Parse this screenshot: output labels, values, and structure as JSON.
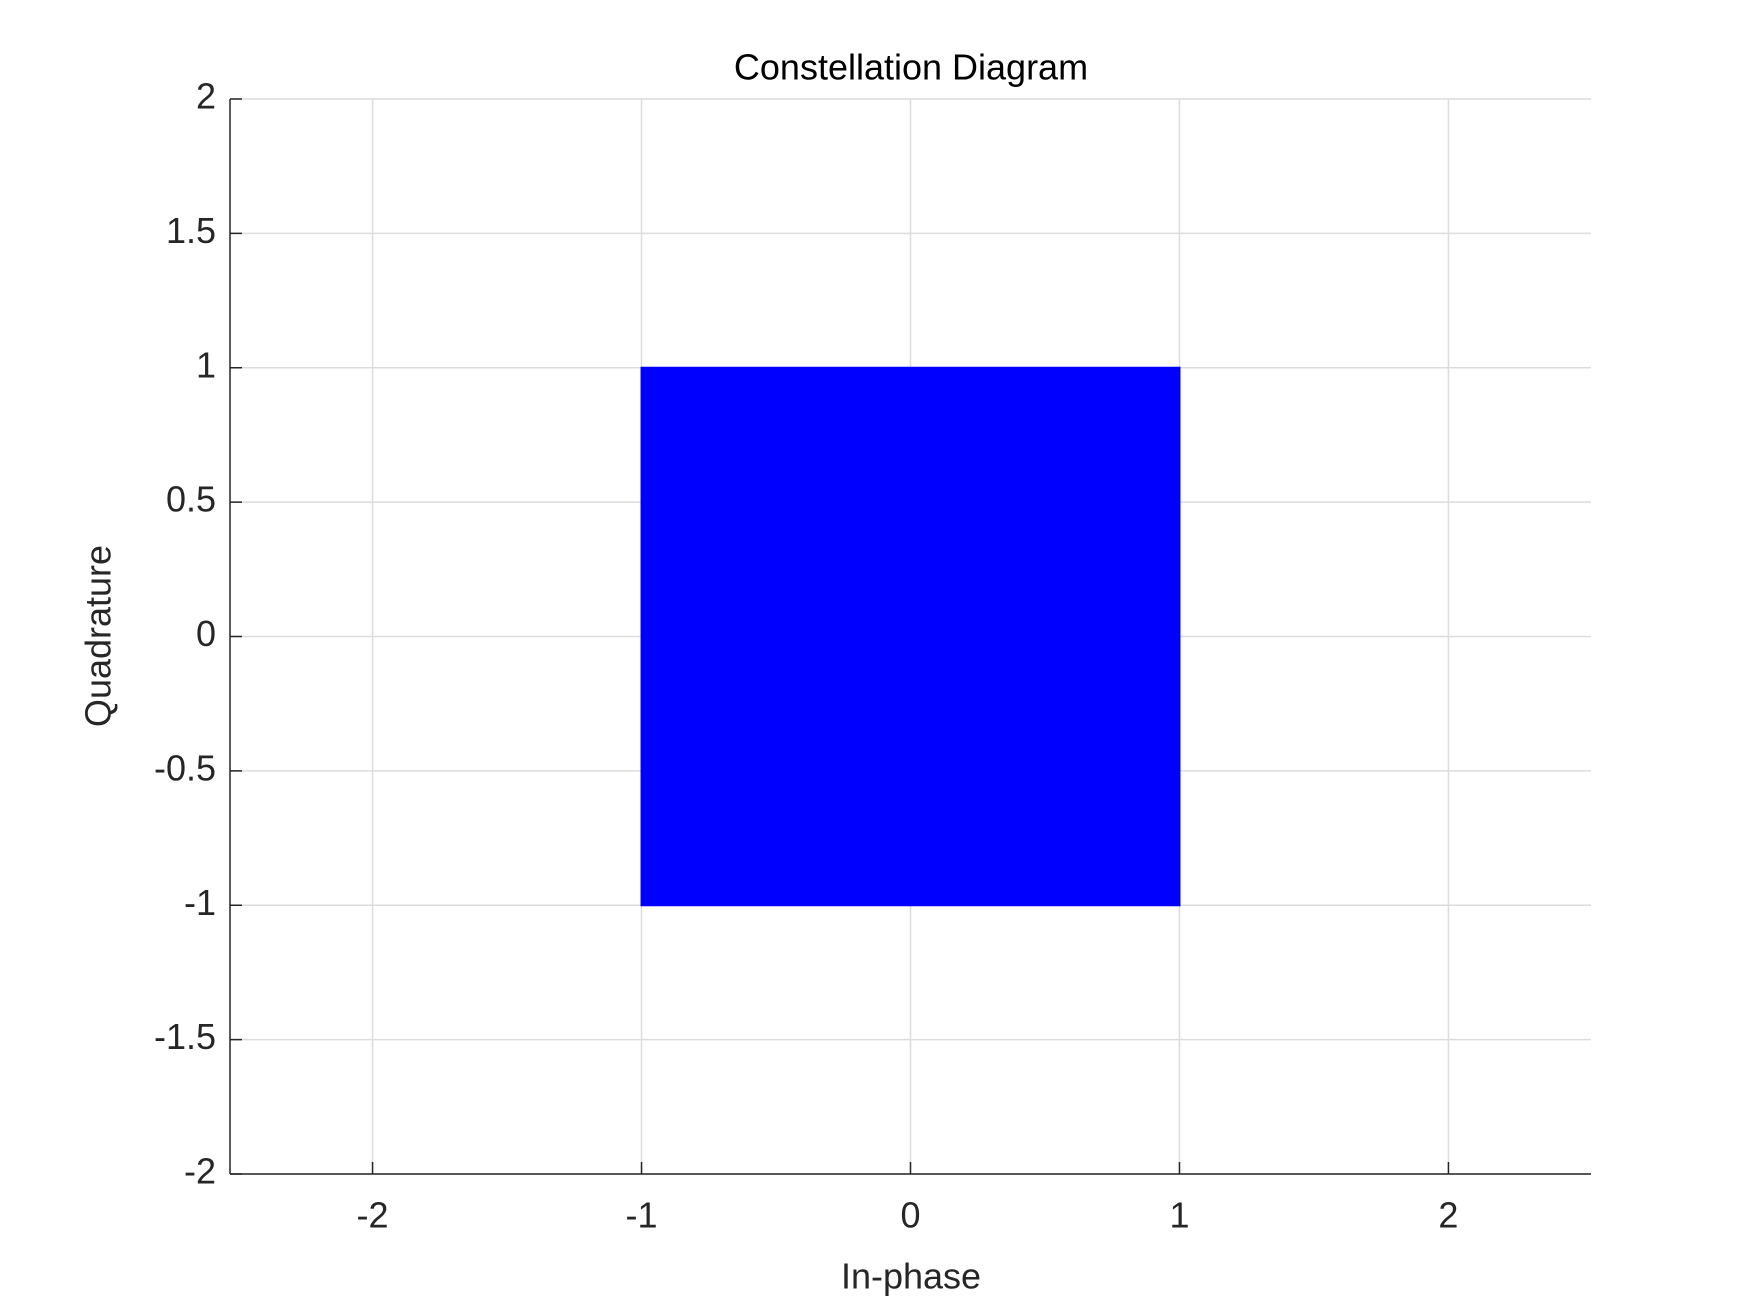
{
  "chart_data": {
    "type": "area",
    "title": "Constellation Diagram",
    "x_label": "In-phase",
    "y_label": "Quadrature",
    "x": [
      -1,
      1,
      1,
      -1
    ],
    "values": [
      -1,
      -1,
      1,
      1
    ],
    "color": "#0000ff",
    "xlim": [
      -2.53,
      2.53
    ],
    "xticks": [
      -2,
      -1,
      0,
      1,
      2
    ],
    "ylim": [
      -2,
      2
    ],
    "yticks": [
      -2,
      -1.5,
      -1,
      -0.5,
      0,
      0.5,
      1,
      1.5,
      2
    ],
    "grid": true
  }
}
